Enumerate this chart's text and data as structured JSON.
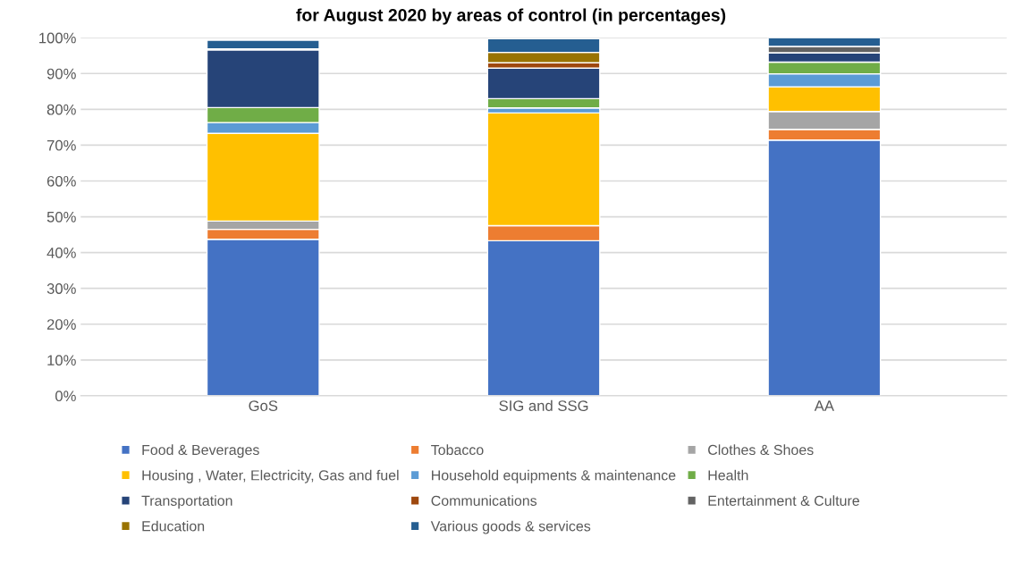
{
  "chart_data": {
    "type": "bar",
    "title": "for August 2020 by areas of control (in percentages)",
    "stacked": true,
    "categories": [
      "GoS",
      "SIG and SSG",
      "AA"
    ],
    "series": [
      {
        "name": "Food & Beverages",
        "color": "#4472c4",
        "values": [
          43.7,
          43.3,
          71.4
        ]
      },
      {
        "name": "Tobacco",
        "color": "#ed7d31",
        "values": [
          2.8,
          4.2,
          3.0
        ]
      },
      {
        "name": "Clothes & Shoes",
        "color": "#a5a5a5",
        "values": [
          2.3,
          null,
          5.0
        ]
      },
      {
        "name": "Housing , Water, Electricity, Gas and fuel",
        "color": "#ffc000",
        "values": [
          24.5,
          31.5,
          6.9
        ]
      },
      {
        "name": "Household equipments & maintenance",
        "color": "#5b9bd5",
        "values": [
          3.0,
          1.4,
          3.6
        ]
      },
      {
        "name": "Health",
        "color": "#70ad47",
        "values": [
          4.2,
          2.6,
          3.3
        ]
      },
      {
        "name": "Transportation",
        "color": "#264478",
        "values": [
          16.1,
          8.5,
          2.6
        ]
      },
      {
        "name": "Communications",
        "color": "#9e480e",
        "values": [
          0.3,
          1.5,
          0
        ]
      },
      {
        "name": "Entertainment & Culture",
        "color": "#636363",
        "values": [
          null,
          null,
          1.8
        ]
      },
      {
        "name": "Education",
        "color": "#997300",
        "values": [
          null,
          2.9,
          0
        ]
      },
      {
        "name": "Various goods & services",
        "color": "#255e91",
        "values": [
          2.4,
          3.8,
          2.4
        ]
      }
    ],
    "ylim": [
      0,
      100
    ],
    "yticks": [
      {
        "value": 0,
        "label": "0%"
      },
      {
        "value": 10,
        "label": "10%"
      },
      {
        "value": 20,
        "label": "20%"
      },
      {
        "value": 30,
        "label": "30%"
      },
      {
        "value": 40,
        "label": "40%"
      },
      {
        "value": 50,
        "label": "50%"
      },
      {
        "value": 60,
        "label": "60%"
      },
      {
        "value": 70,
        "label": "70%"
      },
      {
        "value": 80,
        "label": "80%"
      },
      {
        "value": 90,
        "label": "90%"
      },
      {
        "value": 100,
        "label": "100%"
      }
    ],
    "grid": "y",
    "legend": "bottom"
  }
}
